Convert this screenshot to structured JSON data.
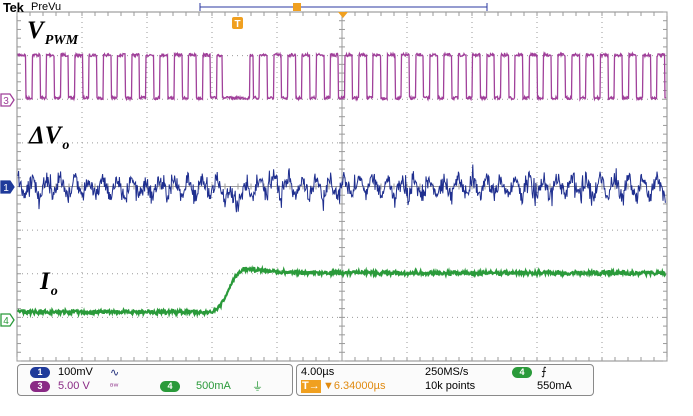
{
  "header": {
    "brand": "Tek",
    "mode": "PreVu"
  },
  "traces": {
    "pwm": {
      "label": "V",
      "subscript": "PWM",
      "channel": "3",
      "color": "#a0409a"
    },
    "ripple": {
      "label": "ΔV",
      "subscript": "o",
      "channel": "1",
      "color": "#1f2f8f"
    },
    "current": {
      "label": "I",
      "subscript": "o",
      "channel": "4",
      "color": "#2a9a3a"
    }
  },
  "markers": {
    "trigger_position": "T"
  },
  "readouts": {
    "ch1": {
      "channel": "1",
      "scale": "100mV",
      "coupling_icon": "bandwidth-icon",
      "color": "#1f3a9a"
    },
    "ch3": {
      "channel": "3",
      "scale": "5.00 V",
      "coupling_icon": "bw-limit-icon",
      "color": "#8a2a85"
    },
    "ch4": {
      "channel": "4",
      "scale": "500mA",
      "coupling_icon": "ground-icon",
      "color": "#2a9a3a"
    },
    "timebase": "4.00µs",
    "sample_rate": "250MS/s",
    "trigger_channel": "4",
    "trigger_level": "550mA",
    "record_length": "10k points",
    "trigger_delay": "▼6.34000µs",
    "trigger_prefix": "T→"
  },
  "colors": {
    "graticule": "#9a9a9a",
    "background": "#ffffff",
    "trigger_orange": "#f0a020"
  }
}
